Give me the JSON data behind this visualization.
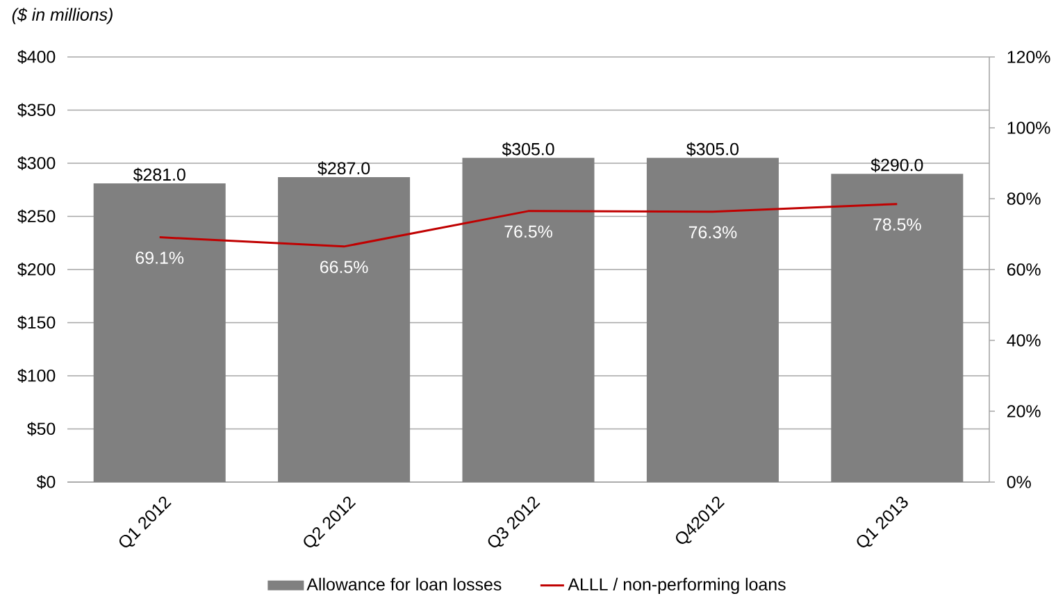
{
  "chart_data": {
    "type": "bar",
    "ylabel": "($ in millions)",
    "categories": [
      "Q1 2012",
      "Q2 2012",
      "Q3 2012",
      "Q42012",
      "Q1 2013"
    ],
    "series": [
      {
        "name": "Allowance for loan losses",
        "type": "bar",
        "color": "#808080",
        "values": [
          281,
          287,
          305,
          305,
          290
        ],
        "value_labels": [
          "$281.0",
          "$287.0",
          "$305.0",
          "$305.0",
          "$290.0"
        ]
      },
      {
        "name": "ALLL / non-performing loans",
        "type": "line",
        "axis": "y2",
        "color": "#c00000",
        "values": [
          69.1,
          66.5,
          76.5,
          76.3,
          78.5
        ],
        "value_labels": [
          "69.1%",
          "66.5%",
          "76.5%",
          "76.3%",
          "78.5%"
        ]
      }
    ],
    "ylim": [
      0,
      400
    ],
    "yticks": [
      {
        "value": 0,
        "label": "$0"
      },
      {
        "value": 50,
        "label": "$50"
      },
      {
        "value": 100,
        "label": "$100"
      },
      {
        "value": 150,
        "label": "$150"
      },
      {
        "value": 200,
        "label": "$200"
      },
      {
        "value": 250,
        "label": "$250"
      },
      {
        "value": 300,
        "label": "$300"
      },
      {
        "value": 350,
        "label": "$350"
      },
      {
        "value": 400,
        "label": "$400"
      }
    ],
    "y2lim": [
      0,
      120
    ],
    "y2ticks": [
      {
        "value": 0,
        "label": "0%"
      },
      {
        "value": 20,
        "label": "20%"
      },
      {
        "value": 40,
        "label": "40%"
      },
      {
        "value": 60,
        "label": "60%"
      },
      {
        "value": 80,
        "label": "80%"
      },
      {
        "value": 100,
        "label": "100%"
      },
      {
        "value": 120,
        "label": "120%"
      }
    ],
    "grid": "y",
    "legend": "bottom",
    "marker": "none",
    "line_style": "solid"
  }
}
